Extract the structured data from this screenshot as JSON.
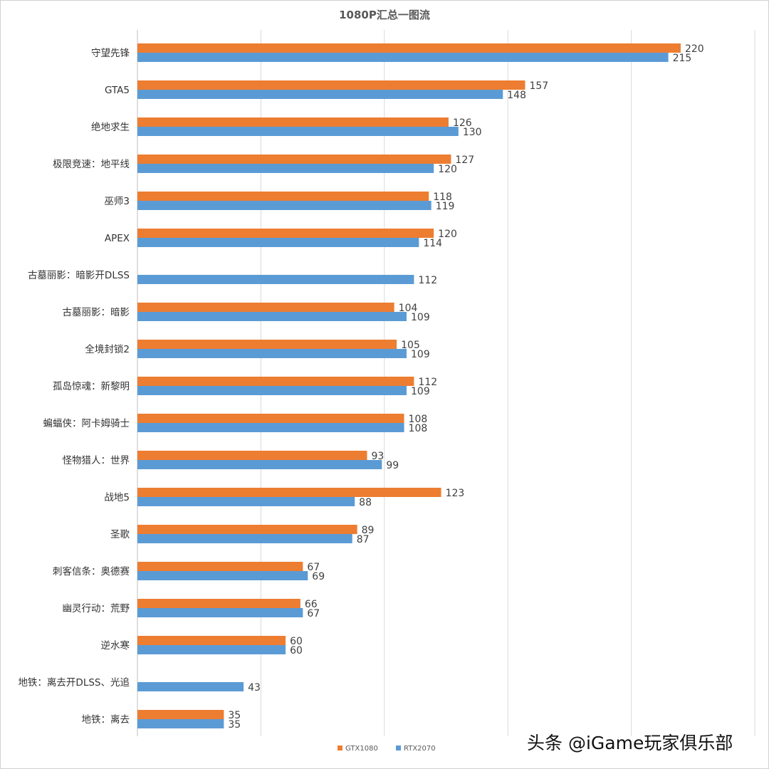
{
  "chart_data": {
    "type": "bar",
    "orientation": "horizontal",
    "title": "1080P汇总一图流",
    "categories": [
      "守望先锋",
      "GTA5",
      "绝地求生",
      "极限竞速：地平线",
      "巫师3",
      "APEX",
      "古墓丽影：暗影开DLSS",
      "古墓丽影：暗影",
      "全境封锁2",
      "孤岛惊魂：新黎明",
      "蝙蝠侠：阿卡姆骑士",
      "怪物猎人：世界",
      "战地5",
      "圣歌",
      "刺客信条：奥德赛",
      "幽灵行动：荒野",
      "逆水寒",
      "地铁：离去开DLSS、光追",
      "地铁：离去"
    ],
    "series": [
      {
        "name": "GTX1080",
        "color": "#ED7D31",
        "values": [
          220,
          157,
          126,
          127,
          118,
          120,
          null,
          104,
          105,
          112,
          108,
          93,
          123,
          89,
          67,
          66,
          60,
          null,
          35
        ]
      },
      {
        "name": "RTX2070",
        "color": "#5B9BD5",
        "values": [
          215,
          148,
          130,
          120,
          119,
          114,
          112,
          109,
          109,
          109,
          108,
          99,
          88,
          87,
          69,
          67,
          60,
          43,
          35
        ]
      }
    ],
    "xlim": [
      0,
      250
    ],
    "grid": true,
    "legend": "bottom-center"
  },
  "watermark": "头条 @iGame玩家俱乐部"
}
